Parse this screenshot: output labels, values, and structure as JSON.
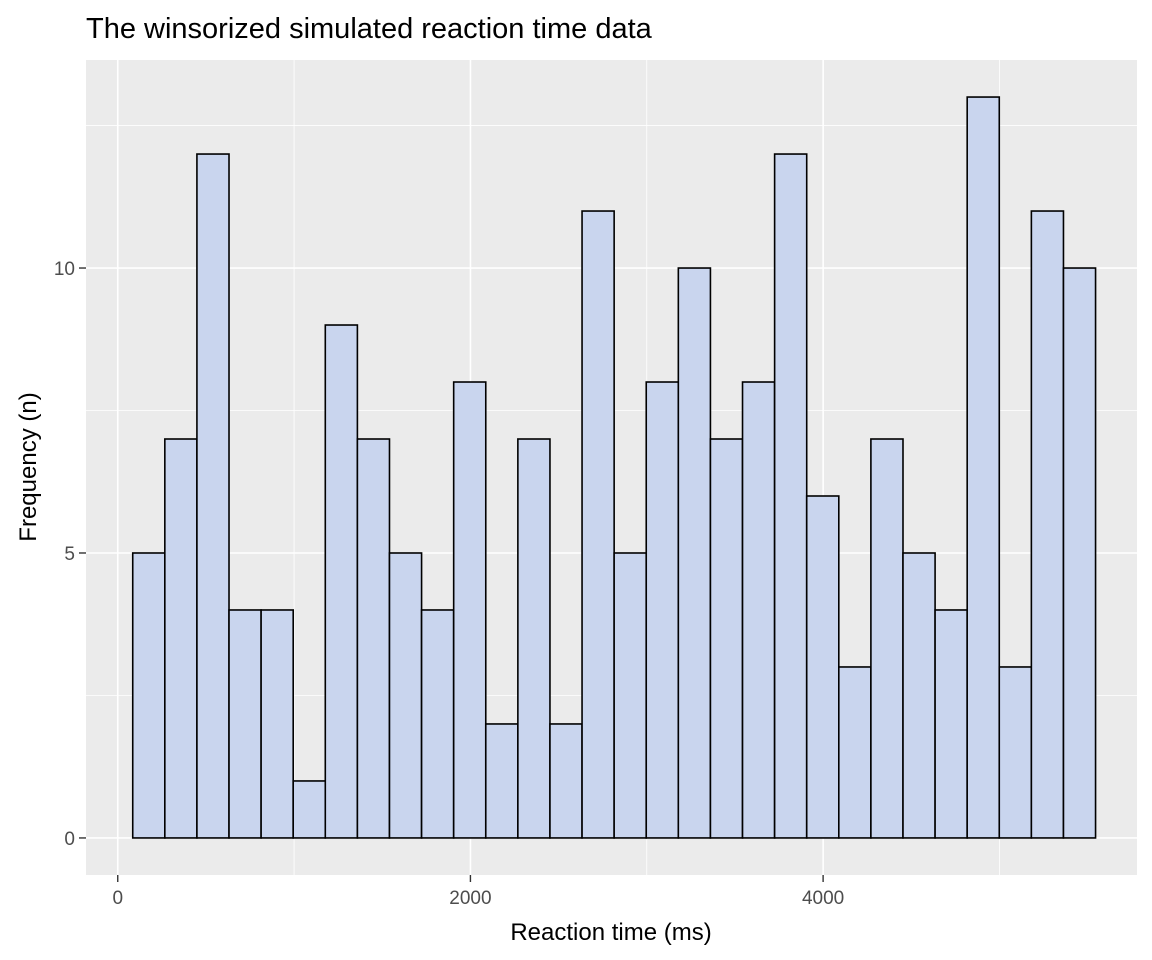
{
  "chart_data": {
    "type": "bar",
    "title": "The winsorized simulated reaction time data",
    "xlabel": "Reaction time (ms)",
    "ylabel": "Frequency (n)",
    "xlim": [
      -180,
      5780
    ],
    "ylim": [
      -0.65,
      13.65
    ],
    "x_ticks": [
      0,
      2000,
      4000
    ],
    "x_tick_labels": [
      "0",
      "2000",
      "4000"
    ],
    "x_minor_ticks": [
      1000,
      3000,
      5000
    ],
    "y_ticks": [
      0,
      5,
      10
    ],
    "y_tick_labels": [
      "0",
      "5",
      "10"
    ],
    "y_minor_ticks": [
      2.5,
      7.5,
      12.5
    ],
    "grid": true,
    "legend": "none",
    "bin_width": 182,
    "bin_start": 85,
    "values": [
      5,
      7,
      12,
      4,
      4,
      1,
      9,
      7,
      5,
      4,
      8,
      2,
      7,
      2,
      11,
      5,
      8,
      10,
      7,
      8,
      12,
      6,
      3,
      7,
      5,
      4,
      13,
      3,
      11,
      10
    ],
    "colors": {
      "bar_fill": "#c9d5ee",
      "bar_outline": "#000000",
      "panel_background": "#ebebeb",
      "grid": "#ffffff"
    }
  }
}
